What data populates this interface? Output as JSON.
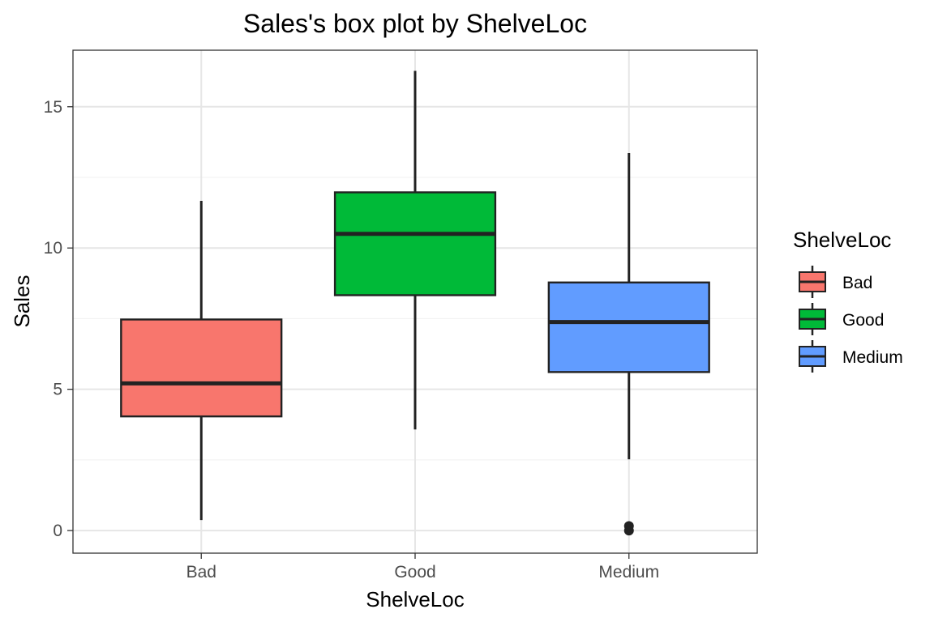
{
  "chart_data": {
    "type": "boxplot",
    "title": "Sales's box plot by ShelveLoc",
    "xlabel": "ShelveLoc",
    "ylabel": "Sales",
    "ylim": [
      -0.8,
      17.0
    ],
    "yticks": [
      0,
      5,
      10,
      15
    ],
    "grid": true,
    "legend": {
      "title": "ShelveLoc",
      "position": "right"
    },
    "categories": [
      "Bad",
      "Good",
      "Medium"
    ],
    "boxes": [
      {
        "name": "Bad",
        "color": "#F8766D",
        "whisker_low": 0.37,
        "q1": 4.04,
        "median": 5.21,
        "q3": 7.47,
        "whisker_high": 11.67,
        "outliers": []
      },
      {
        "name": "Good",
        "color": "#00BA38",
        "whisker_low": 3.58,
        "q1": 8.33,
        "median": 10.5,
        "q3": 11.97,
        "whisker_high": 16.27,
        "outliers": []
      },
      {
        "name": "Medium",
        "color": "#619CFF",
        "whisker_low": 2.52,
        "q1": 5.61,
        "median": 7.38,
        "q3": 8.78,
        "whisker_high": 13.36,
        "outliers": [
          0.0,
          0.16
        ]
      }
    ]
  }
}
